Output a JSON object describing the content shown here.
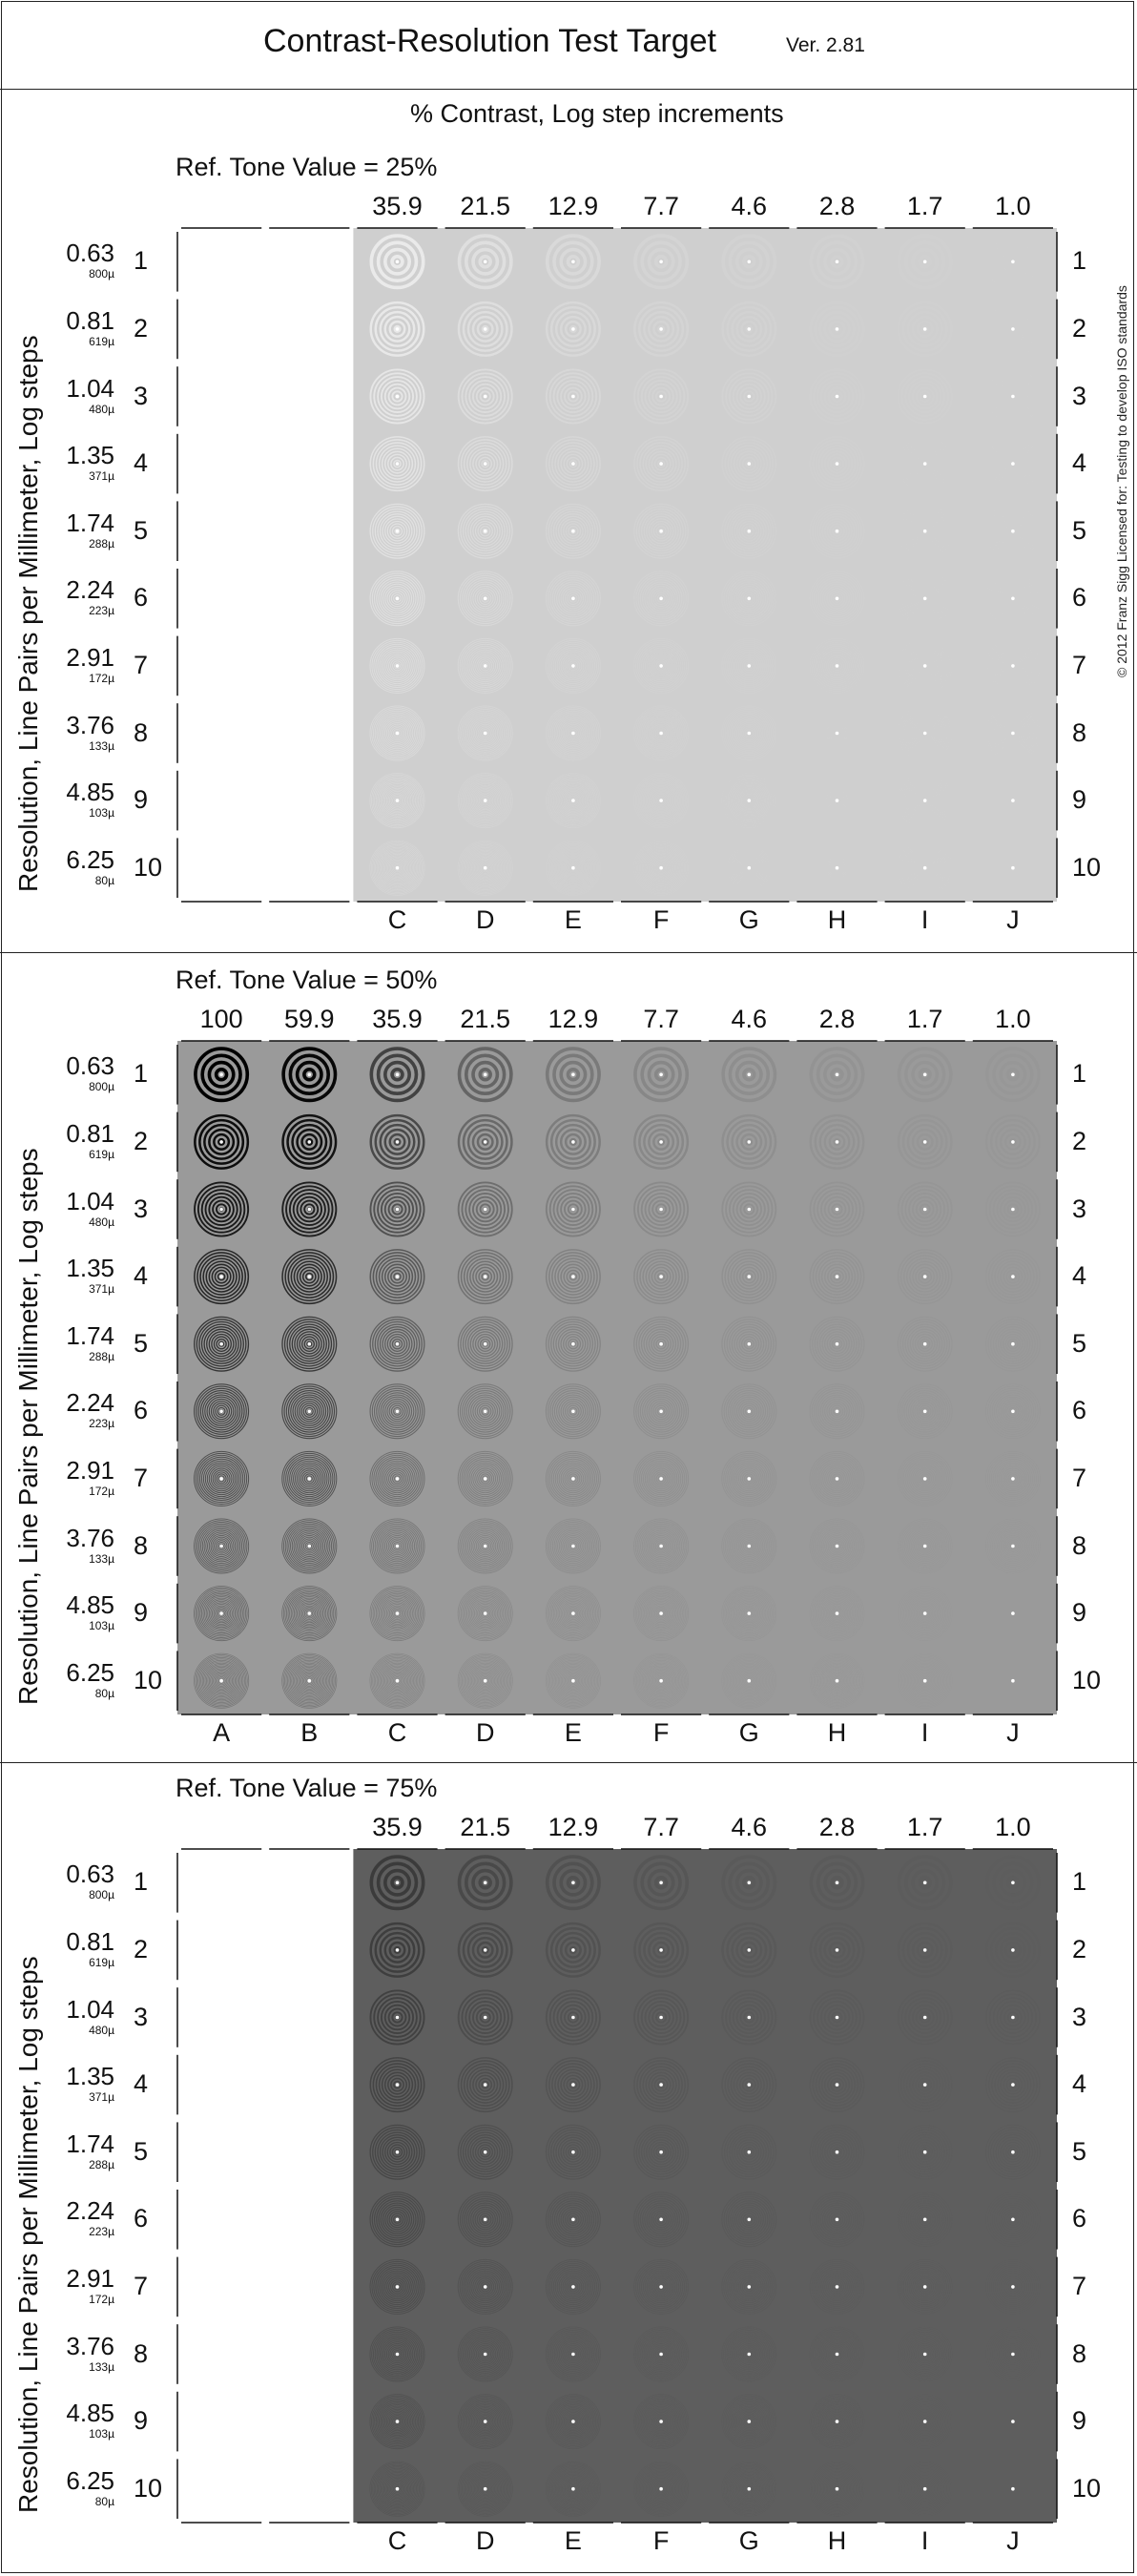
{
  "header": {
    "title": "Contrast-Resolution Test Target",
    "version": "Ver. 2.81",
    "subtitle": "% Contrast,  Log step increments"
  },
  "copyright_notice": "© 2012 Franz Sigg     Licensed for:  Testing to develop ISO standards",
  "y_axis_label": "Resolution,  Line Pairs per Millimeter, Log steps",
  "resolution_rows": [
    {
      "number": "1",
      "lp_mm": "0.63",
      "size": "800µ"
    },
    {
      "number": "2",
      "lp_mm": "0.81",
      "size": "619µ"
    },
    {
      "number": "3",
      "lp_mm": "1.04",
      "size": "480µ"
    },
    {
      "number": "4",
      "lp_mm": "1.35",
      "size": "371µ"
    },
    {
      "number": "5",
      "lp_mm": "1.74",
      "size": "288µ"
    },
    {
      "number": "6",
      "lp_mm": "2.24",
      "size": "223µ"
    },
    {
      "number": "7",
      "lp_mm": "2.91",
      "size": "172µ"
    },
    {
      "number": "8",
      "lp_mm": "3.76",
      "size": "133µ"
    },
    {
      "number": "9",
      "lp_mm": "4.85",
      "size": "103µ"
    },
    {
      "number": "10",
      "lp_mm": "6.25",
      "size": "80µ"
    }
  ],
  "columns": [
    "A",
    "B",
    "C",
    "D",
    "E",
    "F",
    "G",
    "H",
    "I",
    "J"
  ],
  "contrast_values": [
    "100",
    "59.9",
    "35.9",
    "21.5",
    "12.9",
    "7.7",
    "4.6",
    "2.8",
    "1.7",
    "1.0"
  ],
  "panels": [
    {
      "ref_label": "Ref. Tone Value = 25%",
      "tone": 0.25,
      "first_column": 2,
      "background": "#cfcfcf",
      "ring_color": "#ffffff"
    },
    {
      "ref_label": "Ref. Tone Value = 50%",
      "tone": 0.5,
      "first_column": 0,
      "background": "#9a9a9a",
      "ring_color": "#000000"
    },
    {
      "ref_label": "Ref. Tone Value = 75%",
      "tone": 0.75,
      "first_column": 2,
      "background": "#5e5e5e",
      "ring_color": "#222222"
    }
  ]
}
